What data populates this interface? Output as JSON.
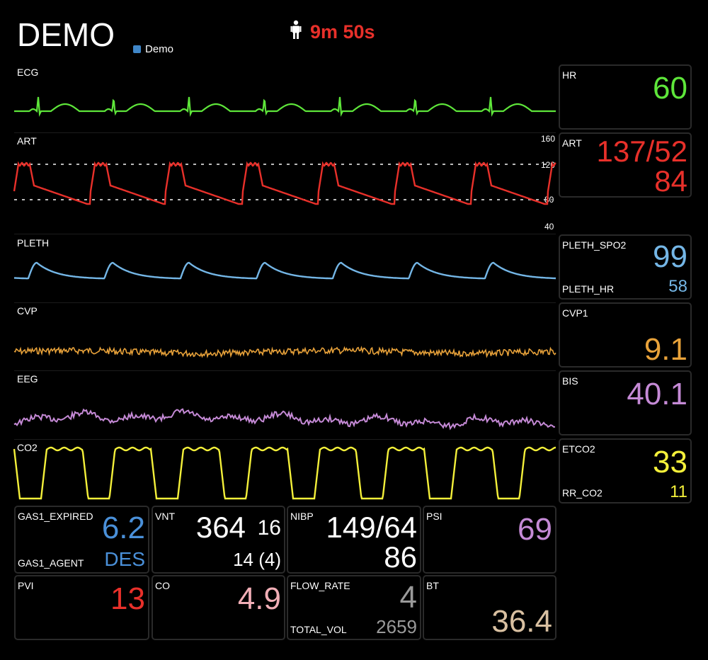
{
  "header": {
    "title": "DEMO",
    "legend_label": "Demo",
    "legend_color": "#3f86c8",
    "elapsed": "9m 50s",
    "elapsed_icon": "person-icon"
  },
  "waves": {
    "ecg": "ECG",
    "art": "ART",
    "pleth": "PLETH",
    "cvp": "CVP",
    "eeg": "EEG",
    "co2": "CO2"
  },
  "art_scale": [
    "160",
    "120",
    "80",
    "40"
  ],
  "colors": {
    "ecg": "#5ee63a",
    "art": "#e8302a",
    "pleth": "#74b6e6",
    "cvp": "#e8a23a",
    "eeg": "#c58ad6",
    "co2": "#f4f03a"
  },
  "numerics": {
    "hr": {
      "label": "HR",
      "value": "60"
    },
    "art": {
      "label": "ART",
      "sys_dia": "137/52",
      "mean": "84"
    },
    "pleth": {
      "label": "PLETH_SPO2",
      "value": "99",
      "label2": "PLETH_HR",
      "value2": "58"
    },
    "cvp": {
      "label": "CVP1",
      "value": "9.1"
    },
    "bis": {
      "label": "BIS",
      "value": "40.1"
    },
    "etco2": {
      "label": "ETCO2",
      "value": "33",
      "label2": "RR_CO2",
      "value2": "11"
    }
  },
  "bottom": {
    "gas": {
      "label": "GAS1_EXPIRED",
      "value": "6.2",
      "label2": "GAS1_AGENT",
      "value2": "DES"
    },
    "vnt": {
      "label": "VNT",
      "value": "364",
      "value_b": "16",
      "value2": "14 (4)"
    },
    "nibp": {
      "label": "NIBP",
      "value": "149/64",
      "value2": "86"
    },
    "psi": {
      "label": "PSI",
      "value": "69"
    },
    "pvi": {
      "label": "PVI",
      "value": "13"
    },
    "co": {
      "label": "CO",
      "value": "4.9"
    },
    "flow": {
      "label": "FLOW_RATE",
      "value": "4",
      "label2": "TOTAL_VOL",
      "value2": "2659"
    },
    "bt": {
      "label": "BT",
      "value": "36.4"
    }
  }
}
